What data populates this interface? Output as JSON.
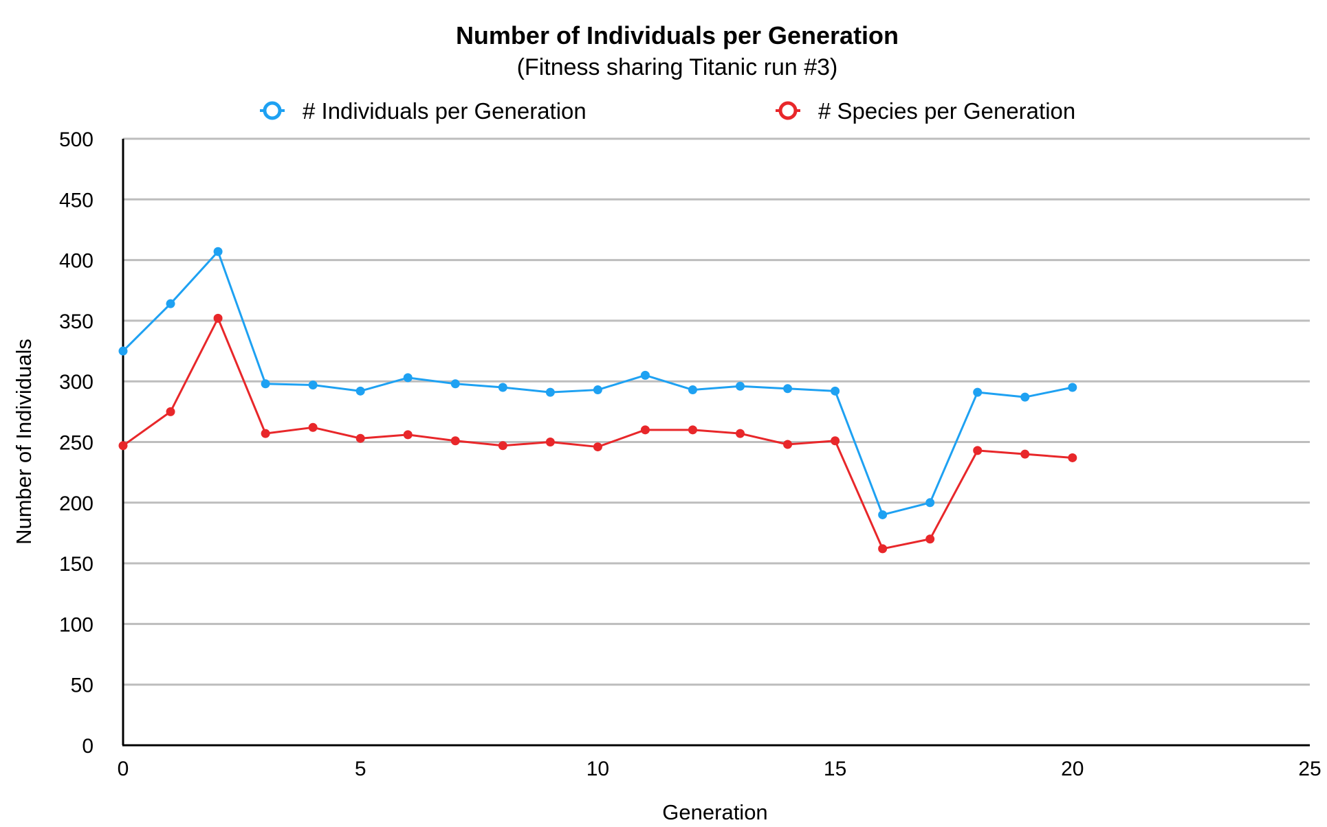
{
  "chart_data": {
    "type": "line",
    "title": "Number of Individuals per Generation",
    "subtitle": "(Fitness sharing Titanic run #3)",
    "xlabel": "Generation",
    "ylabel": "Number of Individuals",
    "xlim": [
      0,
      25
    ],
    "ylim": [
      0,
      500
    ],
    "x_ticks": [
      "0",
      "5",
      "10",
      "15",
      "20",
      "25"
    ],
    "y_ticks": [
      "0",
      "50",
      "100",
      "150",
      "200",
      "250",
      "300",
      "350",
      "400",
      "450",
      "500"
    ],
    "grid": true,
    "legend_position": "top",
    "x": [
      0,
      1,
      2,
      3,
      4,
      5,
      6,
      7,
      8,
      9,
      10,
      11,
      12,
      13,
      14,
      15,
      16,
      17,
      18,
      19,
      20
    ],
    "series": [
      {
        "name": "# Individuals per Generation",
        "color": "#1ea1f2",
        "values": [
          325,
          364,
          407,
          298,
          297,
          292,
          303,
          298,
          295,
          291,
          293,
          305,
          293,
          296,
          294,
          292,
          190,
          200,
          291,
          287,
          295
        ]
      },
      {
        "name": "# Species per Generation",
        "color": "#e8272a",
        "values": [
          247,
          275,
          352,
          257,
          262,
          253,
          256,
          251,
          247,
          250,
          246,
          260,
          260,
          257,
          248,
          251,
          162,
          170,
          243,
          240,
          237
        ]
      }
    ]
  }
}
